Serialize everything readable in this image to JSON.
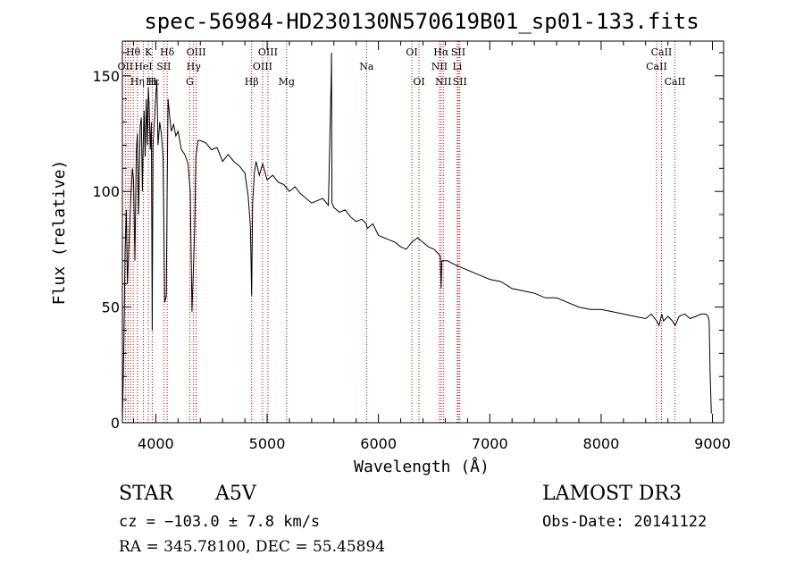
{
  "chart_data": {
    "type": "line",
    "title": "spec-56984-HD230130N570619B01_sp01-133.fits",
    "xlabel": "Wavelength (Å)",
    "ylabel": "Flux (relative)",
    "xlim": [
      3700,
      9100
    ],
    "ylim": [
      0,
      165
    ],
    "xticks": [
      "4000",
      "5000",
      "6000",
      "7000",
      "8000",
      "9000"
    ],
    "xtick_values": [
      4000,
      5000,
      6000,
      7000,
      8000,
      9000
    ],
    "yticks": [
      "0",
      "50",
      "100",
      "150"
    ],
    "ytick_values": [
      0,
      50,
      100,
      150
    ],
    "series": [
      {
        "name": "flux",
        "x": [
          3700,
          3712,
          3725,
          3735,
          3745,
          3760,
          3775,
          3790,
          3800,
          3812,
          3825,
          3835,
          3845,
          3860,
          3870,
          3880,
          3888,
          3895,
          3905,
          3915,
          3925,
          3933,
          3940,
          3950,
          3960,
          3968,
          3975,
          3990,
          4000,
          4010,
          4020,
          4035,
          4050,
          4065,
          4080,
          4095,
          4102,
          4110,
          4125,
          4140,
          4160,
          4180,
          4200,
          4230,
          4260,
          4290,
          4310,
          4325,
          4340,
          4350,
          4360,
          4380,
          4400,
          4450,
          4500,
          4550,
          4600,
          4650,
          4700,
          4750,
          4800,
          4830,
          4850,
          4861,
          4870,
          4885,
          4900,
          4930,
          4960,
          5000,
          5050,
          5100,
          5150,
          5200,
          5250,
          5300,
          5350,
          5400,
          5450,
          5500,
          5550,
          5576,
          5578,
          5582,
          5600,
          5650,
          5700,
          5750,
          5800,
          5850,
          5890,
          5900,
          5950,
          6000,
          6050,
          6100,
          6150,
          6200,
          6250,
          6300,
          6350,
          6400,
          6450,
          6500,
          6540,
          6555,
          6563,
          6570,
          6590,
          6620,
          6660,
          6700,
          6750,
          6800,
          6900,
          7000,
          7100,
          7200,
          7300,
          7400,
          7500,
          7600,
          7700,
          7800,
          7900,
          8000,
          8100,
          8200,
          8300,
          8400,
          8450,
          8500,
          8520,
          8545,
          8560,
          8600,
          8640,
          8665,
          8700,
          8750,
          8800,
          8850,
          8900,
          8940,
          8960,
          8970,
          8980,
          8990
        ],
        "values": [
          0,
          30,
          75,
          92,
          60,
          78,
          96,
          110,
          105,
          70,
          118,
          125,
          90,
          128,
          132,
          100,
          122,
          135,
          115,
          140,
          120,
          145,
          138,
          118,
          130,
          40,
          120,
          132,
          142,
          148,
          120,
          130,
          125,
          115,
          52,
          55,
          100,
          140,
          132,
          126,
          129,
          124,
          126,
          118,
          116,
          112,
          100,
          48,
          70,
          85,
          115,
          122,
          122,
          121,
          118,
          119,
          113,
          116,
          113,
          111,
          108,
          98,
          85,
          55,
          95,
          108,
          113,
          107,
          112,
          105,
          107,
          104,
          103,
          100,
          102,
          99,
          97,
          95,
          96,
          97,
          94,
          150,
          160,
          95,
          93,
          91,
          92,
          89,
          87,
          88,
          86,
          84,
          86,
          81,
          80,
          79,
          78,
          76,
          75,
          78,
          80,
          78,
          76,
          75,
          73,
          72,
          58,
          70,
          70,
          70,
          69,
          68,
          67,
          66,
          64,
          62,
          61,
          58,
          57,
          56,
          54,
          54,
          52,
          50,
          49,
          49,
          48,
          47,
          46,
          45,
          47,
          44,
          42,
          47,
          44,
          46,
          44,
          42,
          46,
          47,
          45,
          46,
          47,
          47,
          46,
          44,
          20,
          4
        ]
      }
    ],
    "line_labels": [
      {
        "text": "Hθ",
        "wave": 3797,
        "row": 1
      },
      {
        "text": "K",
        "wave": 3934,
        "row": 1
      },
      {
        "text": "Hδ",
        "wave": 4102,
        "row": 1
      },
      {
        "text": "OIII",
        "wave": 4363,
        "row": 1
      },
      {
        "text": "OIII",
        "wave": 5007,
        "row": 1
      },
      {
        "text": "OI",
        "wave": 6300,
        "row": 1
      },
      {
        "text": "Hα",
        "wave": 6563,
        "row": 1
      },
      {
        "text": "SII",
        "wave": 6717,
        "row": 1
      },
      {
        "text": "CaII",
        "wave": 8542,
        "row": 1
      },
      {
        "text": "OII",
        "wave": 3727,
        "row": 2
      },
      {
        "text": "HeI",
        "wave": 3889,
        "row": 2
      },
      {
        "text": "SII",
        "wave": 4072,
        "row": 2
      },
      {
        "text": "Hγ",
        "wave": 4340,
        "row": 2
      },
      {
        "text": "OIII",
        "wave": 4959,
        "row": 2
      },
      {
        "text": "Na",
        "wave": 5893,
        "row": 2
      },
      {
        "text": "NII",
        "wave": 6548,
        "row": 2
      },
      {
        "text": "Li",
        "wave": 6708,
        "row": 2
      },
      {
        "text": "CaII",
        "wave": 8498,
        "row": 2
      },
      {
        "text": "Hε",
        "wave": 3970,
        "row": 3
      },
      {
        "text": "Hη",
        "wave": 3835,
        "row": 3
      },
      {
        "text": "H",
        "wave": 3968,
        "row": 3
      },
      {
        "text": "G",
        "wave": 4305,
        "row": 3
      },
      {
        "text": "Hβ",
        "wave": 4861,
        "row": 3
      },
      {
        "text": "Mg",
        "wave": 5175,
        "row": 3
      },
      {
        "text": "OI",
        "wave": 6364,
        "row": 3
      },
      {
        "text": "NII",
        "wave": 6583,
        "row": 3
      },
      {
        "text": "SII",
        "wave": 6731,
        "row": 3
      },
      {
        "text": "CaII",
        "wave": 8662,
        "row": 3
      }
    ],
    "marker_lines": [
      3727,
      3750,
      3771,
      3797,
      3835,
      3889,
      3934,
      3968,
      4072,
      4102,
      4305,
      4340,
      4363,
      4861,
      4959,
      5007,
      5175,
      5893,
      6300,
      6364,
      6548,
      6563,
      6583,
      6708,
      6717,
      6731,
      8498,
      8542,
      8662
    ],
    "line_color": "#000000",
    "marker_color": "#c00000"
  },
  "info": {
    "object_class": "STAR",
    "subclass": "A5V",
    "survey": "LAMOST DR3",
    "cz": "cz = −103.0 ± 7.8 km/s",
    "obs_date": "Obs-Date: 20141122",
    "coords": "RA = 345.78100, DEC =  55.45894"
  }
}
